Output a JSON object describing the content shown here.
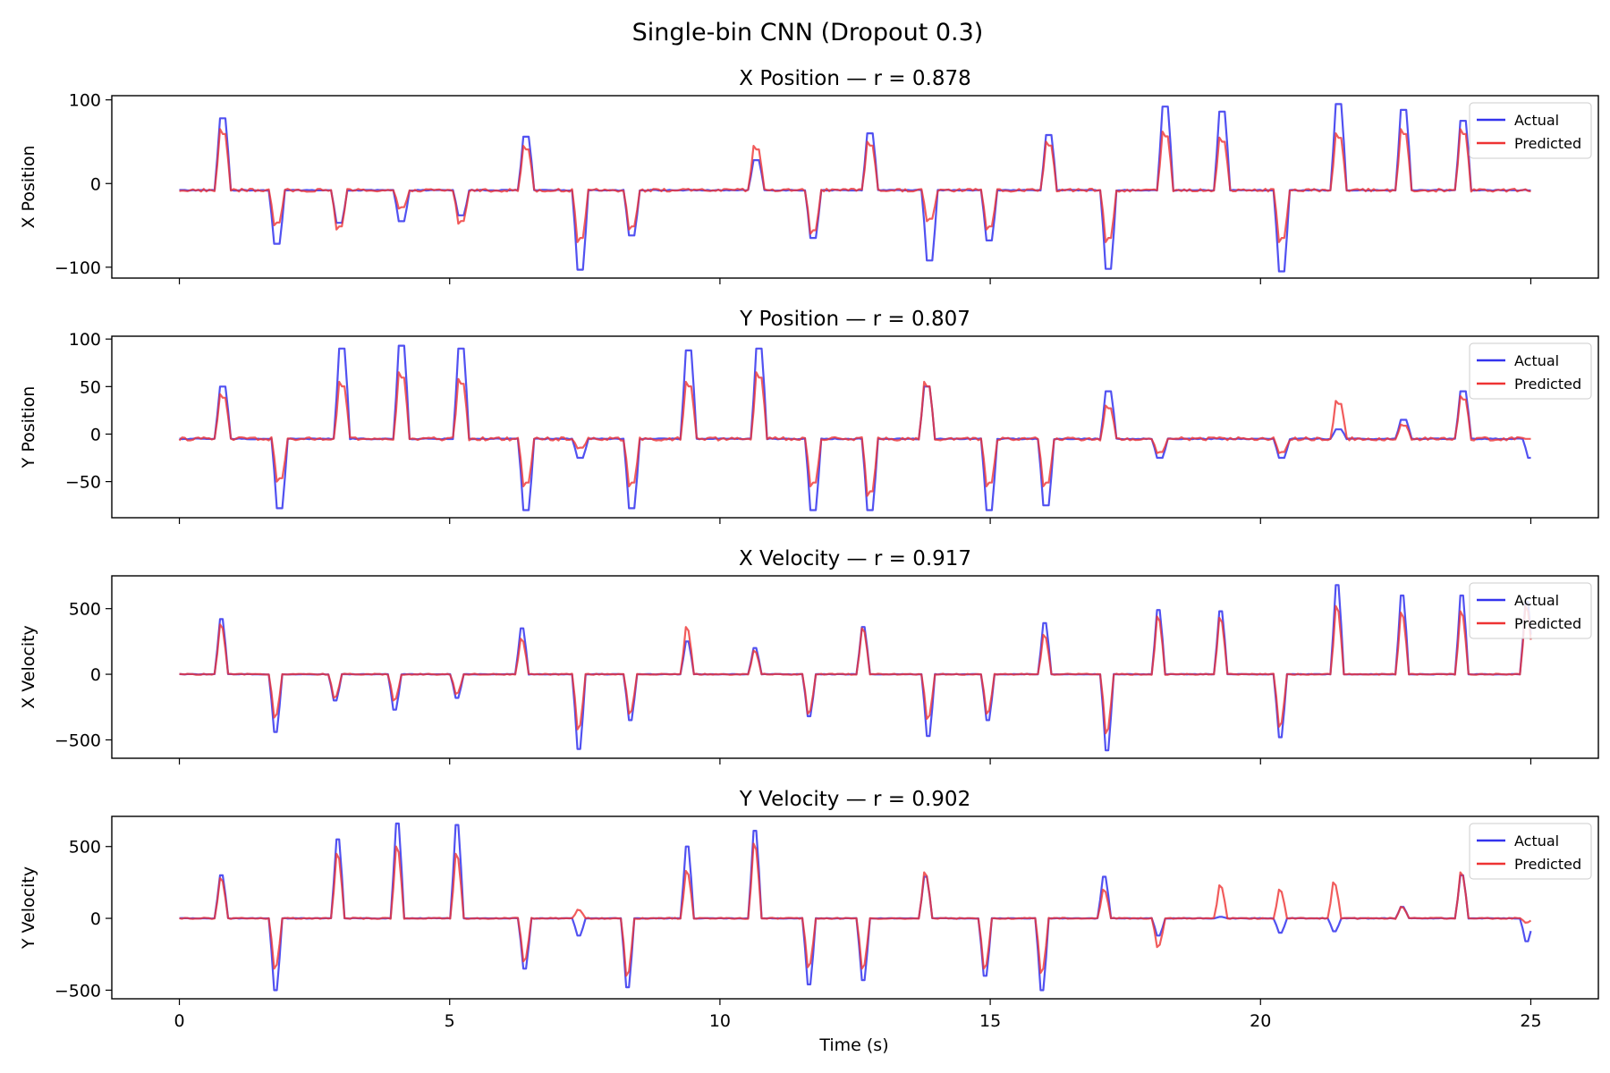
{
  "chart_data": {
    "type": "line",
    "title": "Single-bin CNN (Dropout 0.3)",
    "xlabel": "Time (s)",
    "xlim": [
      -1.25,
      26.25
    ],
    "xticks": [
      0,
      5,
      10,
      15,
      20,
      25
    ],
    "colors": {
      "actual": "#3333ee",
      "predicted": "#ee3333"
    },
    "legend": {
      "placement": "upper right",
      "entries": [
        "Actual",
        "Predicted"
      ]
    },
    "panels": [
      {
        "id": "xpos",
        "title": "X Position — r = 0.878",
        "ylabel": "X Position",
        "ylim": [
          -113,
          105
        ],
        "yticks": [
          -100,
          0,
          100
        ],
        "yticklabels": [
          "−100",
          "0",
          "100"
        ],
        "baseline": -8,
        "events": [
          {
            "t": 0.75,
            "a": 78,
            "p": 65
          },
          {
            "t": 1.75,
            "a": -72,
            "p": -50
          },
          {
            "t": 2.9,
            "a": -47,
            "p": -55
          },
          {
            "t": 4.05,
            "a": -45,
            "p": -30
          },
          {
            "t": 5.15,
            "a": -38,
            "p": -48
          },
          {
            "t": 6.35,
            "a": 56,
            "p": 45
          },
          {
            "t": 7.35,
            "a": -103,
            "p": -70
          },
          {
            "t": 8.3,
            "a": -62,
            "p": -55
          },
          {
            "t": 10.6,
            "a": 28,
            "p": 45
          },
          {
            "t": 11.65,
            "a": -65,
            "p": -60
          },
          {
            "t": 12.75,
            "a": 60,
            "p": 50
          },
          {
            "t": 13.85,
            "a": -92,
            "p": -45
          },
          {
            "t": 14.95,
            "a": -68,
            "p": -55
          },
          {
            "t": 16.05,
            "a": 58,
            "p": 50
          },
          {
            "t": 17.15,
            "a": -102,
            "p": -70
          },
          {
            "t": 18.2,
            "a": 92,
            "p": 62
          },
          {
            "t": 19.25,
            "a": 86,
            "p": 55
          },
          {
            "t": 20.35,
            "a": -105,
            "p": -70
          },
          {
            "t": 21.4,
            "a": 95,
            "p": 60
          },
          {
            "t": 22.6,
            "a": 88,
            "p": 65
          },
          {
            "t": 23.7,
            "a": 75,
            "p": 65
          }
        ]
      },
      {
        "id": "ypos",
        "title": "Y Position — r = 0.807",
        "ylabel": "Y Position",
        "ylim": [
          -88,
          103
        ],
        "yticks": [
          -50,
          0,
          50,
          100
        ],
        "yticklabels": [
          "−50",
          "0",
          "50",
          "100"
        ],
        "baseline": -5,
        "events": [
          {
            "t": 0.75,
            "a": 50,
            "p": 42
          },
          {
            "t": 1.8,
            "a": -78,
            "p": -50
          },
          {
            "t": 2.95,
            "a": 90,
            "p": 55
          },
          {
            "t": 4.05,
            "a": 93,
            "p": 65
          },
          {
            "t": 5.15,
            "a": 90,
            "p": 58
          },
          {
            "t": 6.35,
            "a": -80,
            "p": -55
          },
          {
            "t": 7.35,
            "a": -25,
            "p": -15
          },
          {
            "t": 8.3,
            "a": -78,
            "p": -55
          },
          {
            "t": 9.35,
            "a": 88,
            "p": 55
          },
          {
            "t": 10.65,
            "a": 90,
            "p": 65
          },
          {
            "t": 11.65,
            "a": -80,
            "p": -55
          },
          {
            "t": 12.75,
            "a": -80,
            "p": -65
          },
          {
            "t": 13.8,
            "a": 50,
            "p": 55
          },
          {
            "t": 14.95,
            "a": -80,
            "p": -55
          },
          {
            "t": 16.0,
            "a": -75,
            "p": -55
          },
          {
            "t": 17.15,
            "a": 45,
            "p": 30
          },
          {
            "t": 18.1,
            "a": -25,
            "p": -20
          },
          {
            "t": 20.35,
            "a": -25,
            "p": -20
          },
          {
            "t": 21.4,
            "a": 5,
            "p": 35
          },
          {
            "t": 22.6,
            "a": 15,
            "p": 10
          },
          {
            "t": 23.7,
            "a": 45,
            "p": 40
          },
          {
            "t": 24.95,
            "a": -25,
            "p": -5
          }
        ]
      },
      {
        "id": "xvel",
        "title": "X Velocity — r = 0.917",
        "ylabel": "X Velocity",
        "ylim": [
          -640,
          750
        ],
        "yticks": [
          -500,
          0,
          500
        ],
        "yticklabels": [
          "−500",
          "0",
          "500"
        ],
        "baseline": 0,
        "events": [
          {
            "t": 0.75,
            "a": 420,
            "p": 380
          },
          {
            "t": 1.75,
            "a": -440,
            "p": -330
          },
          {
            "t": 2.85,
            "a": -200,
            "p": -180
          },
          {
            "t": 3.95,
            "a": -270,
            "p": -200
          },
          {
            "t": 5.1,
            "a": -180,
            "p": -150
          },
          {
            "t": 6.3,
            "a": 350,
            "p": 270
          },
          {
            "t": 7.35,
            "a": -570,
            "p": -420
          },
          {
            "t": 8.3,
            "a": -350,
            "p": -300
          },
          {
            "t": 9.35,
            "a": 250,
            "p": 360
          },
          {
            "t": 10.6,
            "a": 200,
            "p": 180
          },
          {
            "t": 11.6,
            "a": -320,
            "p": -300
          },
          {
            "t": 12.65,
            "a": 360,
            "p": 350
          },
          {
            "t": 13.85,
            "a": -470,
            "p": -340
          },
          {
            "t": 14.95,
            "a": -350,
            "p": -300
          },
          {
            "t": 16.0,
            "a": 390,
            "p": 300
          },
          {
            "t": 17.15,
            "a": -580,
            "p": -450
          },
          {
            "t": 18.1,
            "a": 490,
            "p": 440
          },
          {
            "t": 19.25,
            "a": 480,
            "p": 430
          },
          {
            "t": 20.35,
            "a": -480,
            "p": -400
          },
          {
            "t": 21.4,
            "a": 680,
            "p": 520
          },
          {
            "t": 22.6,
            "a": 600,
            "p": 470
          },
          {
            "t": 23.7,
            "a": 600,
            "p": 480
          },
          {
            "t": 24.9,
            "a": 550,
            "p": 520
          }
        ]
      },
      {
        "id": "yvel",
        "title": "Y Velocity — r = 0.902",
        "ylabel": "Y Velocity",
        "ylim": [
          -560,
          710
        ],
        "yticks": [
          -500,
          0,
          500
        ],
        "yticklabels": [
          "−500",
          "0",
          "500"
        ],
        "baseline": 0,
        "events": [
          {
            "t": 0.75,
            "a": 300,
            "p": 280
          },
          {
            "t": 1.75,
            "a": -500,
            "p": -350
          },
          {
            "t": 2.9,
            "a": 550,
            "p": 450
          },
          {
            "t": 4.0,
            "a": 660,
            "p": 500
          },
          {
            "t": 5.1,
            "a": 650,
            "p": 450
          },
          {
            "t": 6.35,
            "a": -350,
            "p": -300
          },
          {
            "t": 7.35,
            "a": -120,
            "p": 60
          },
          {
            "t": 8.25,
            "a": -480,
            "p": -400
          },
          {
            "t": 9.35,
            "a": 500,
            "p": 330
          },
          {
            "t": 10.6,
            "a": 610,
            "p": 520
          },
          {
            "t": 11.6,
            "a": -460,
            "p": -340
          },
          {
            "t": 12.65,
            "a": -430,
            "p": -350
          },
          {
            "t": 13.8,
            "a": 290,
            "p": 320
          },
          {
            "t": 14.9,
            "a": -400,
            "p": -350
          },
          {
            "t": 15.95,
            "a": -500,
            "p": -380
          },
          {
            "t": 17.1,
            "a": 290,
            "p": 200
          },
          {
            "t": 18.1,
            "a": -120,
            "p": -200
          },
          {
            "t": 19.25,
            "a": 10,
            "p": 230
          },
          {
            "t": 20.35,
            "a": -100,
            "p": 200
          },
          {
            "t": 21.35,
            "a": -90,
            "p": 250
          },
          {
            "t": 22.6,
            "a": 80,
            "p": 80
          },
          {
            "t": 23.7,
            "a": 300,
            "p": 320
          },
          {
            "t": 24.9,
            "a": -160,
            "p": -30
          }
        ]
      }
    ]
  }
}
